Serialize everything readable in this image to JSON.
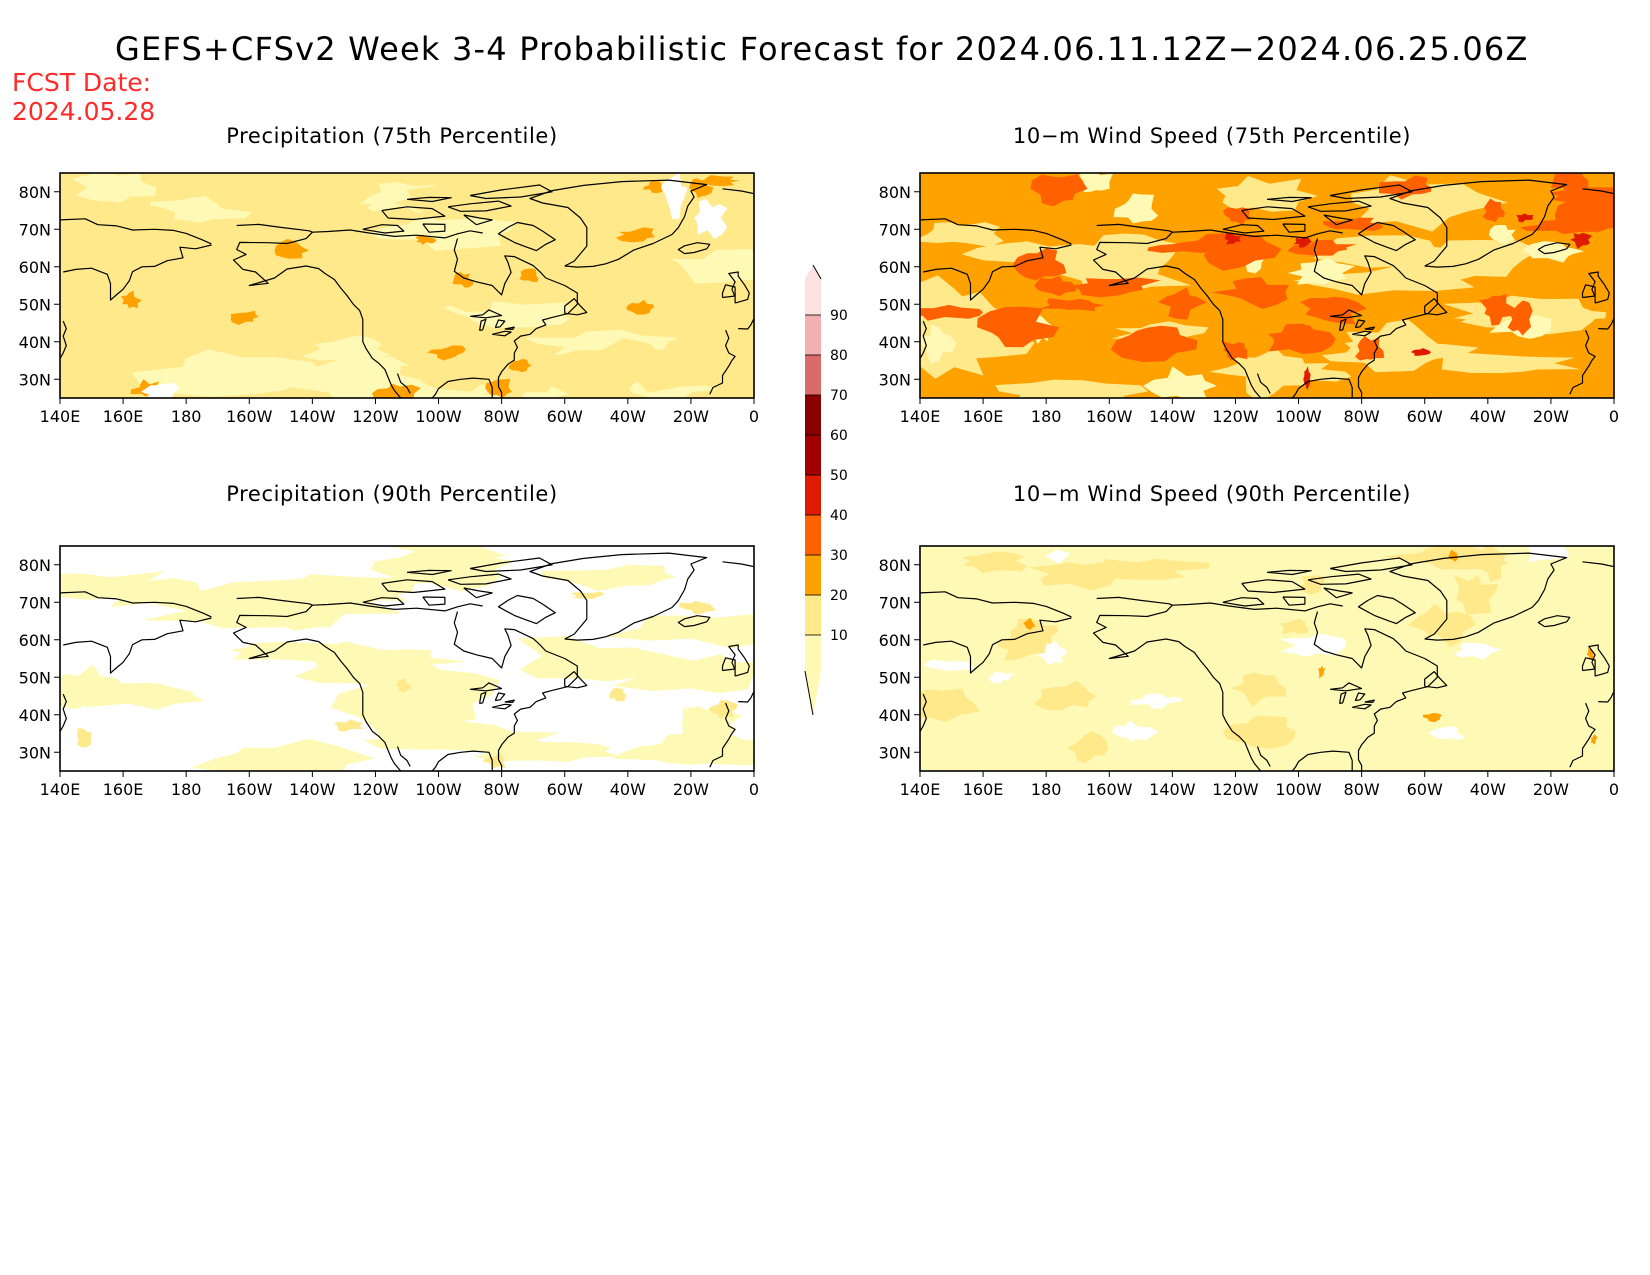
{
  "title": "GEFS+CFSv2 Week 3-4 Probabilistic Forecast for 2024.06.11.12Z−2024.06.25.06Z",
  "fcst_label": "FCST Date:",
  "fcst_date": "2024.05.28",
  "lat_ticks": [
    "80N",
    "70N",
    "60N",
    "50N",
    "40N",
    "30N"
  ],
  "lon_ticks": [
    "140E",
    "160E",
    "180",
    "160W",
    "140W",
    "120W",
    "100W",
    "80W",
    "60W",
    "40W",
    "20W",
    "0"
  ],
  "colorbar": {
    "levels": [
      "10",
      "20",
      "30",
      "40",
      "50",
      "60",
      "70",
      "80",
      "90"
    ],
    "colors": [
      "#fff9b6",
      "#ffe98a",
      "#ffa200",
      "#ff6100",
      "#e01a00",
      "#a00000",
      "#8a0000",
      "#d96b6b",
      "#f2b0b0",
      "#fde2e2"
    ]
  },
  "panels": [
    {
      "id": "precip75",
      "title": "Precipitation (75th Percentile)",
      "base_level": 1,
      "colors": [
        "#ffffff",
        "#fff9b6",
        "#ffe98a",
        "#ffa200"
      ]
    },
    {
      "id": "wind75",
      "title": "10−m Wind Speed (75th Percentile)",
      "base_level": 2,
      "colors": [
        "#ffffff",
        "#fff9b6",
        "#ffe98a",
        "#ffa200",
        "#ff6100",
        "#e01a00"
      ]
    },
    {
      "id": "precip90",
      "title": "Precipitation (90th Percentile)",
      "base_level": 0,
      "colors": [
        "#ffffff",
        "#fff9b6",
        "#ffe98a"
      ]
    },
    {
      "id": "wind90",
      "title": "10−m Wind Speed (90th Percentile)",
      "base_level": 1,
      "colors": [
        "#ffffff",
        "#fff9b6",
        "#ffe98a",
        "#ffa200"
      ]
    }
  ]
}
